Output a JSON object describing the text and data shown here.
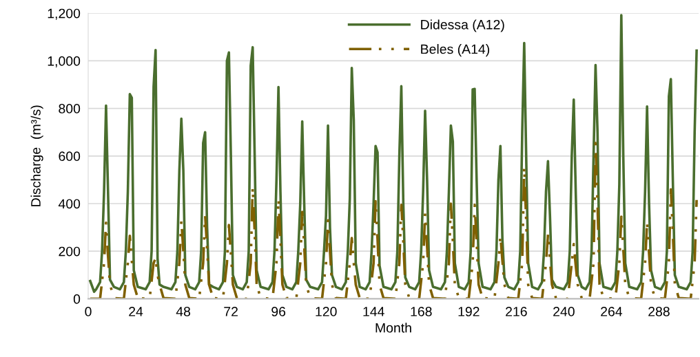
{
  "chart_data": {
    "type": "line",
    "xlabel": "Month",
    "ylabel": "Discharge  (m³/s)",
    "xlim": [
      0,
      308
    ],
    "xticks": [
      0,
      24,
      48,
      72,
      96,
      120,
      144,
      168,
      192,
      216,
      240,
      264,
      288
    ],
    "ylim": [
      0,
      1200
    ],
    "yticks": [
      0,
      200,
      400,
      600,
      800,
      {
        "value": 1000,
        "label": "1,000"
      },
      {
        "value": 1200,
        "label": "1,200"
      }
    ],
    "grid": "y",
    "legend": "top",
    "marker": "none",
    "series": [
      {
        "name": "Didessa (A12)",
        "color": "#4a6e2e",
        "line_style": "solid",
        "x": [
          1,
          3,
          4,
          6,
          7,
          8,
          9,
          10,
          11,
          13,
          16,
          18,
          19,
          20,
          21,
          22,
          23,
          25,
          29,
          31,
          32,
          33,
          34,
          35,
          36,
          38,
          42,
          44,
          45,
          46,
          47,
          48,
          49,
          51,
          54,
          56,
          57,
          58,
          59,
          60,
          61,
          63,
          66,
          68,
          69,
          70,
          71,
          72,
          73,
          75,
          78,
          80,
          81,
          82,
          83,
          84,
          85,
          87,
          91,
          93,
          94,
          95,
          96,
          97,
          98,
          100,
          103,
          105,
          106,
          107,
          108,
          109,
          110,
          112,
          116,
          118,
          119,
          120,
          121,
          122,
          123,
          125,
          128,
          130,
          131,
          132,
          133,
          134,
          135,
          137,
          140,
          142,
          143,
          144,
          145,
          146,
          147,
          149,
          153,
          155,
          156,
          157,
          158,
          159,
          160,
          162,
          165,
          167,
          168,
          169,
          170,
          171,
          172,
          174,
          178,
          180,
          181,
          182,
          183,
          184,
          185,
          187,
          190,
          192,
          193,
          194,
          195,
          196,
          197,
          199,
          203,
          205,
          206,
          207,
          208,
          209,
          210,
          212,
          215,
          217,
          218,
          219,
          220,
          221,
          222,
          224,
          227,
          229,
          230,
          231,
          232,
          233,
          234,
          236,
          240,
          242,
          243,
          244,
          245,
          246,
          247,
          249,
          251,
          253,
          254,
          255,
          256,
          257,
          258,
          260,
          264,
          266,
          267,
          268,
          269,
          270,
          271,
          273,
          277,
          279,
          280,
          281,
          282,
          283,
          284,
          286,
          289,
          291,
          292,
          293,
          294,
          295,
          296,
          298,
          302,
          304,
          305,
          306,
          307
        ],
        "values": [
          75,
          30,
          40,
          70,
          200,
          450,
          812,
          450,
          80,
          50,
          40,
          70,
          200,
          450,
          860,
          845,
          120,
          50,
          40,
          70,
          200,
          890,
          1045,
          170,
          60,
          50,
          40,
          70,
          200,
          540,
          757,
          540,
          100,
          50,
          40,
          70,
          200,
          655,
          700,
          300,
          60,
          50,
          40,
          70,
          200,
          1000,
          1035,
          600,
          100,
          50,
          40,
          70,
          200,
          980,
          1057,
          600,
          120,
          50,
          40,
          70,
          200,
          500,
          890,
          450,
          100,
          50,
          40,
          70,
          200,
          400,
          745,
          400,
          80,
          50,
          40,
          70,
          200,
          350,
          728,
          300,
          100,
          50,
          40,
          70,
          200,
          420,
          970,
          750,
          150,
          50,
          40,
          70,
          200,
          400,
          642,
          615,
          140,
          50,
          40,
          70,
          200,
          600,
          893,
          400,
          90,
          50,
          40,
          70,
          200,
          450,
          790,
          500,
          120,
          50,
          40,
          70,
          200,
          450,
          728,
          660,
          150,
          50,
          40,
          70,
          200,
          880,
          882,
          500,
          150,
          50,
          40,
          70,
          200,
          500,
          642,
          250,
          90,
          50,
          40,
          70,
          200,
          700,
          1075,
          600,
          150,
          50,
          40,
          70,
          200,
          450,
          578,
          350,
          80,
          50,
          40,
          70,
          200,
          600,
          837,
          450,
          100,
          50,
          40,
          70,
          200,
          600,
          982,
          700,
          150,
          50,
          40,
          70,
          200,
          480,
          1192,
          600,
          150,
          50,
          40,
          70,
          200,
          450,
          808,
          400,
          120,
          50,
          40,
          70,
          200,
          850,
          923,
          500,
          100,
          50,
          40,
          70,
          200,
          700,
          1043
        ]
      },
      {
        "name": "Beles (A14)",
        "color": "#7f6000",
        "line_style": "dashed",
        "x": [
          1,
          6,
          8,
          9,
          10,
          11,
          13,
          18,
          20,
          21,
          22,
          23,
          25,
          31,
          33,
          34,
          35,
          36,
          38,
          44,
          46,
          47,
          48,
          49,
          51,
          56,
          58,
          59,
          60,
          61,
          63,
          68,
          70,
          71,
          72,
          73,
          75,
          80,
          82,
          83,
          84,
          85,
          87,
          93,
          95,
          96,
          97,
          98,
          100,
          105,
          107,
          108,
          109,
          110,
          112,
          118,
          120,
          121,
          122,
          123,
          125,
          130,
          132,
          133,
          134,
          135,
          137,
          142,
          144,
          145,
          146,
          147,
          149,
          155,
          157,
          158,
          159,
          160,
          162,
          167,
          169,
          170,
          171,
          172,
          174,
          180,
          182,
          183,
          184,
          185,
          187,
          192,
          194,
          195,
          196,
          197,
          199,
          205,
          207,
          208,
          209,
          210,
          212,
          217,
          219,
          220,
          221,
          222,
          224,
          229,
          231,
          232,
          233,
          234,
          236,
          242,
          244,
          245,
          246,
          247,
          249,
          253,
          255,
          256,
          257,
          258,
          260,
          266,
          268,
          269,
          270,
          271,
          273,
          279,
          281,
          282,
          283,
          284,
          286,
          291,
          293,
          294,
          295,
          296,
          298,
          304,
          306,
          307
        ],
        "values": [
          0,
          0,
          150,
          320,
          180,
          60,
          3,
          0,
          150,
          265,
          160,
          60,
          3,
          0,
          150,
          170,
          100,
          60,
          3,
          0,
          150,
          330,
          200,
          60,
          3,
          0,
          150,
          350,
          210,
          60,
          3,
          0,
          150,
          310,
          190,
          60,
          3,
          0,
          150,
          470,
          280,
          60,
          3,
          0,
          150,
          420,
          250,
          60,
          3,
          0,
          150,
          365,
          220,
          60,
          3,
          0,
          150,
          330,
          200,
          60,
          3,
          0,
          150,
          255,
          150,
          60,
          3,
          0,
          150,
          410,
          250,
          60,
          3,
          0,
          150,
          395,
          240,
          60,
          3,
          0,
          150,
          360,
          220,
          60,
          3,
          0,
          150,
          400,
          240,
          60,
          3,
          0,
          150,
          395,
          240,
          60,
          3,
          0,
          150,
          265,
          160,
          60,
          3,
          0,
          150,
          555,
          330,
          60,
          3,
          0,
          150,
          270,
          160,
          60,
          3,
          0,
          150,
          230,
          140,
          60,
          3,
          0,
          150,
          655,
          400,
          60,
          3,
          0,
          150,
          345,
          210,
          60,
          3,
          0,
          150,
          320,
          190,
          60,
          3,
          0,
          150,
          460,
          280,
          60,
          3,
          0,
          150,
          415
        ]
      }
    ]
  }
}
